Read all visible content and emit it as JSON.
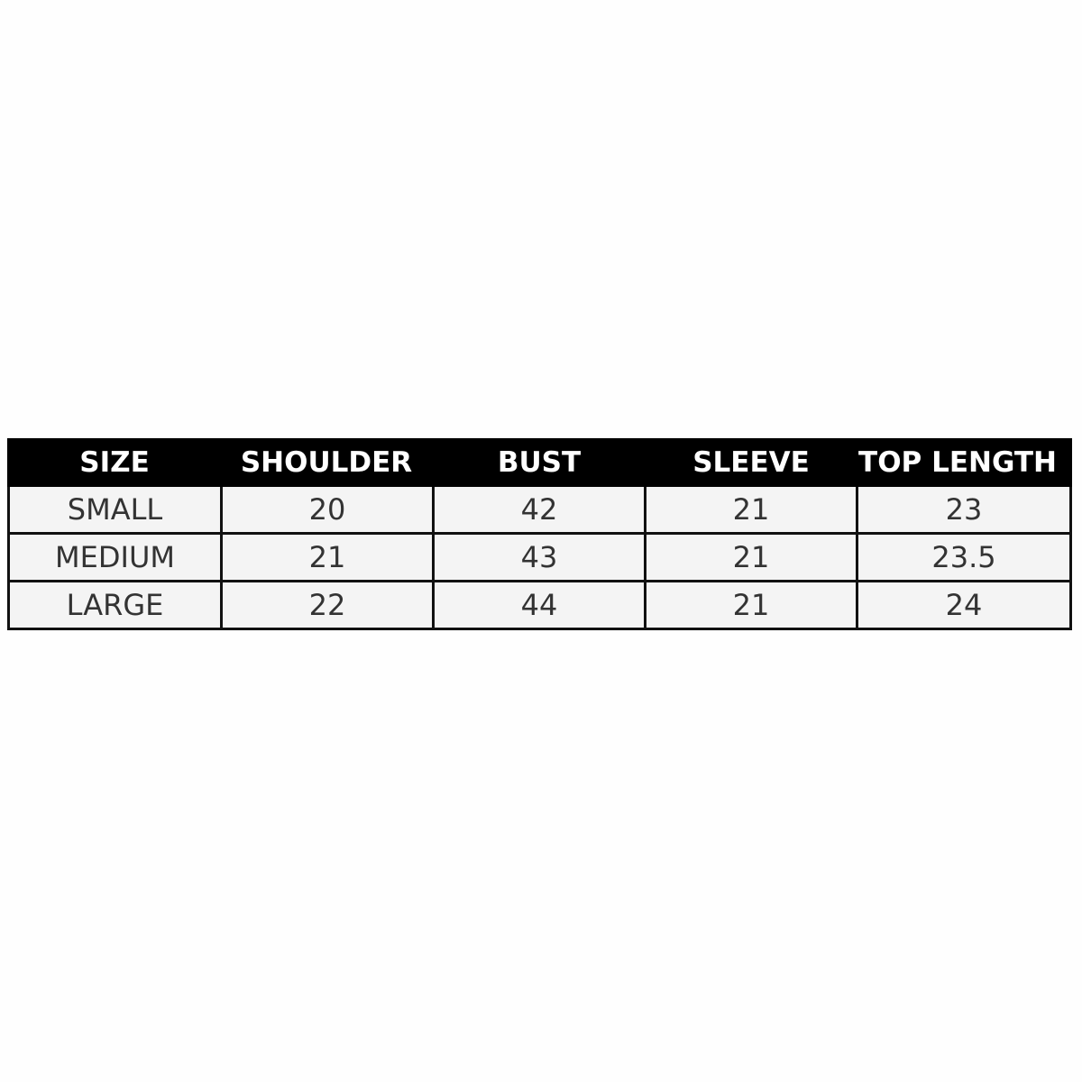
{
  "table": {
    "headers": [
      "SIZE",
      "SHOULDER",
      "BUST",
      "SLEEVE",
      "TOP LENGTH"
    ],
    "rows": [
      [
        "SMALL",
        "20",
        "42",
        "21",
        "23"
      ],
      [
        "MEDIUM",
        "21",
        "43",
        "21",
        "23.5"
      ],
      [
        "LARGE",
        "22",
        "44",
        "21",
        "24"
      ]
    ],
    "colors": {
      "header_bg": "#000000",
      "header_text": "#ffffff",
      "cell_bg": "#f4f4f4",
      "cell_text": "#333333",
      "border": "#111111"
    }
  }
}
